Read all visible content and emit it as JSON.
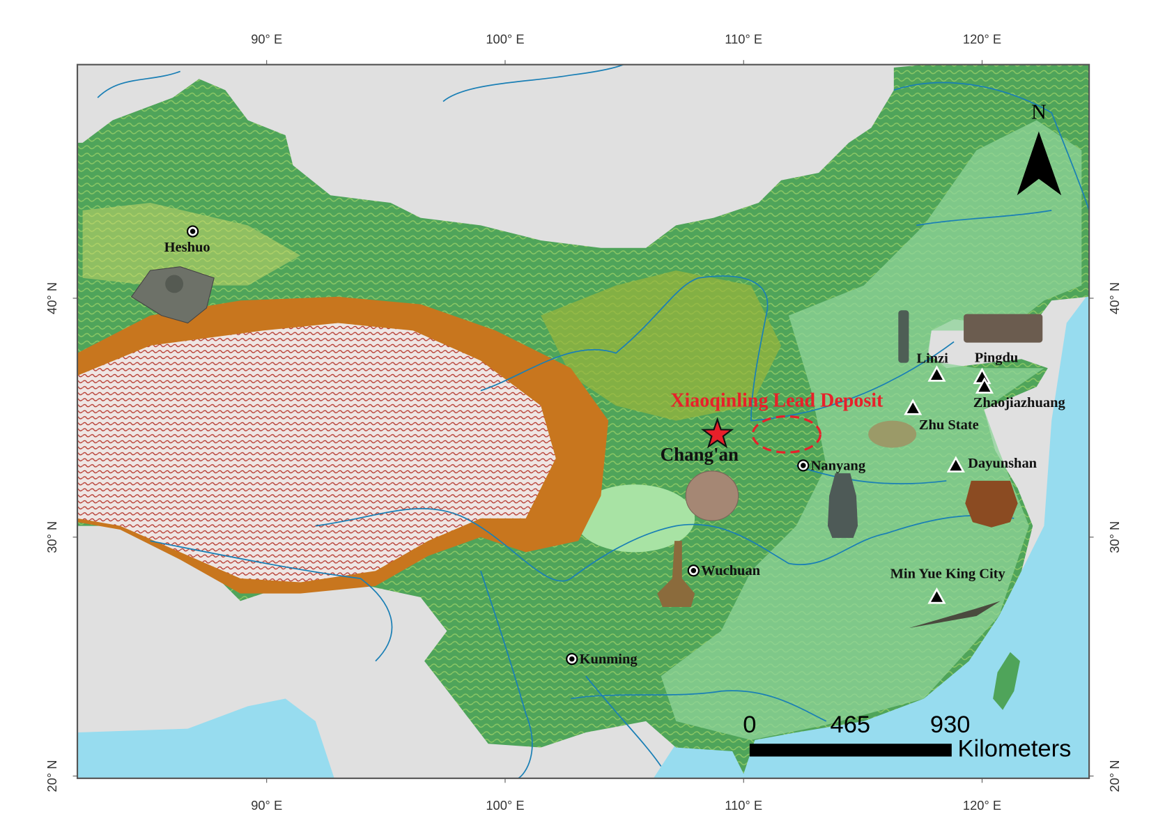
{
  "axes": {
    "lon_ticks": [
      {
        "value": 90,
        "label": "90° E"
      },
      {
        "value": 100,
        "label": "100° E"
      },
      {
        "value": 110,
        "label": "110° E"
      },
      {
        "value": 120,
        "label": "120° E"
      }
    ],
    "lat_ticks": [
      {
        "value": 40,
        "label": "40° N"
      },
      {
        "value": 30,
        "label": "30° N"
      },
      {
        "value": 20,
        "label": "20° N"
      }
    ]
  },
  "north_arrow": {
    "label": "N"
  },
  "scale_bar": {
    "labels": [
      "0",
      "465",
      "930"
    ],
    "unit": "Kilometers"
  },
  "deposit": {
    "label": "Xiaoqinling Lead Deposit",
    "lon": 111.8,
    "lat": 34.3,
    "color": "#e8202a"
  },
  "capital": {
    "label": "Chang'an",
    "lon": 108.9,
    "lat": 34.3
  },
  "cities": [
    {
      "label": "Heshuo",
      "lon": 86.9,
      "lat": 42.8,
      "label_position": "below"
    },
    {
      "label": "Nanyang",
      "lon": 112.5,
      "lat": 33.0,
      "label_position": "right"
    },
    {
      "label": "Wuchuan",
      "lon": 107.9,
      "lat": 28.6,
      "label_position": "right"
    },
    {
      "label": "Kunming",
      "lon": 102.8,
      "lat": 24.9,
      "label_position": "right"
    }
  ],
  "sites": [
    {
      "label": "Linzi",
      "lon": 118.1,
      "lat": 36.8,
      "label_position": "above-left"
    },
    {
      "label": "Pingdu",
      "lon": 120.0,
      "lat": 36.7,
      "label_position": "above"
    },
    {
      "label": "Zhaojiazhuang",
      "lon": 120.1,
      "lat": 36.3,
      "label_position": "below"
    },
    {
      "label": "Zhu State",
      "lon": 117.1,
      "lat": 35.4,
      "label_position": "below-right"
    },
    {
      "label": "Dayunshan",
      "lon": 118.9,
      "lat": 33.0,
      "label_position": "right"
    },
    {
      "label": "Min Yue King City",
      "lon": 118.1,
      "lat": 27.5,
      "label_position": "above"
    }
  ],
  "colors": {
    "background_land": "#e0e0e0",
    "sea": "#97dcef",
    "lowland": "#8fd49a",
    "upland": "#4fa45a",
    "plateau_edge": "#c8761e",
    "river": "#1a7fb5",
    "deposit": "#e8202a"
  }
}
